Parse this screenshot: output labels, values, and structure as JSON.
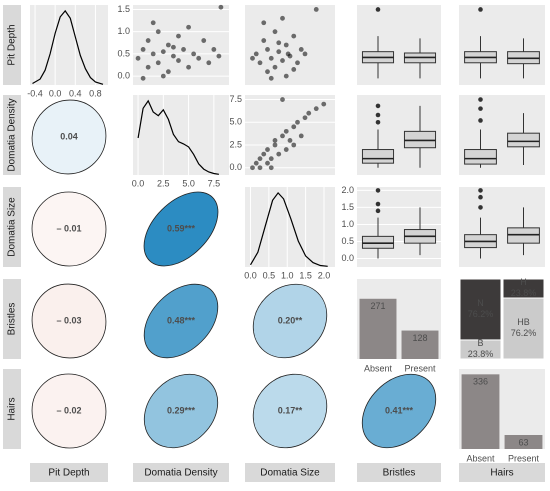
{
  "variables": [
    "Pit Depth",
    "Domatia Density",
    "Domatia Size",
    "Bristles",
    "Hairs"
  ],
  "chart_data": [
    {
      "type": "density",
      "xlim": [
        -0.5,
        1.05
      ],
      "ylim": [
        0,
        1.08
      ],
      "xticks": [
        {
          "value": -0.4,
          "label": "-0.4"
        },
        {
          "value": 0,
          "label": "0.0"
        },
        {
          "value": 0.4,
          "label": "0.4"
        },
        {
          "value": 0.8,
          "label": "0.8"
        }
      ],
      "x": [
        -0.45,
        -0.3,
        -0.2,
        -0.1,
        0,
        0.1,
        0.2,
        0.3,
        0.4,
        0.5,
        0.6,
        0.7,
        0.8,
        0.95
      ],
      "y": [
        0.02,
        0.08,
        0.2,
        0.42,
        0.7,
        0.92,
        1.0,
        0.9,
        0.65,
        0.4,
        0.22,
        0.1,
        0.04,
        0.01
      ]
    },
    {
      "type": "scatter",
      "xlim": [
        -0.5,
        9
      ],
      "ylim": [
        -0.2,
        1.6
      ],
      "yticks": [
        {
          "value": 0,
          "label": "0.0"
        },
        0.5,
        {
          "value": 1,
          "label": "1.0"
        },
        1.5
      ],
      "x": [
        0,
        0.5,
        1,
        1,
        1.5,
        2,
        2,
        2.5,
        3,
        3,
        3.5,
        4,
        4,
        4.5,
        5,
        5,
        5.5,
        6,
        6.5,
        7,
        7.5,
        8,
        1.5,
        2.5,
        3.5,
        0.5,
        8.2
      ],
      "y": [
        0.4,
        0.6,
        0.2,
        0.8,
        0.5,
        0.3,
        1.0,
        0.55,
        0.1,
        0.7,
        0.45,
        0.9,
        0.35,
        0.6,
        0.2,
        1.1,
        0.5,
        0.4,
        0.8,
        0.3,
        0.6,
        0.45,
        1.2,
        0.0,
        0.65,
        -0.05,
        1.55
      ]
    },
    {
      "type": "scatter",
      "xlim": [
        -0.1,
        2.3
      ],
      "ylim": [
        -0.2,
        1.6
      ],
      "x": [
        0.2,
        0.3,
        0.4,
        0.5,
        0.5,
        0.6,
        0.7,
        0.7,
        0.8,
        0.9,
        1.0,
        1.0,
        1.1,
        1.2,
        1.3,
        1.4,
        1.5,
        0.4,
        0.6,
        0.9,
        1.2,
        1.8,
        0.1,
        0.8,
        1.05
      ],
      "y": [
        0.5,
        0.3,
        0.8,
        0.1,
        0.6,
        0.4,
        1.0,
        0.2,
        0.55,
        0.35,
        0.7,
        0.0,
        0.45,
        0.9,
        0.3,
        0.6,
        0.5,
        1.2,
        -0.05,
        1.3,
        0.15,
        1.5,
        0.4,
        0.75,
        0.5
      ]
    },
    {
      "type": "box",
      "ylim": [
        -0.2,
        1.6
      ],
      "boxes": [
        {
          "min": -0.05,
          "q1": 0.3,
          "median": 0.42,
          "q3": 0.55,
          "max": 0.9,
          "outliers": [
            1.5
          ]
        },
        {
          "min": -0.05,
          "q1": 0.3,
          "median": 0.42,
          "q3": 0.52,
          "max": 0.85,
          "outliers": []
        }
      ]
    },
    {
      "type": "box",
      "ylim": [
        -0.2,
        1.6
      ],
      "boxes": [
        {
          "min": -0.05,
          "q1": 0.3,
          "median": 0.42,
          "q3": 0.55,
          "max": 0.9,
          "outliers": [
            1.5
          ]
        },
        {
          "min": -0.05,
          "q1": 0.28,
          "median": 0.4,
          "q3": 0.55,
          "max": 0.85,
          "outliers": []
        }
      ]
    },
    {
      "type": "correlation",
      "value": 0.04,
      "label": "0.04"
    },
    {
      "type": "density",
      "xlim": [
        -0.5,
        9
      ],
      "ylim": [
        0,
        1.08
      ],
      "xticks": [
        {
          "value": 0,
          "label": "0.0"
        },
        2.5,
        {
          "value": 5,
          "label": "5.0"
        },
        7.5
      ],
      "x": [
        0,
        0.5,
        1,
        1.5,
        2,
        2.5,
        3,
        3.5,
        4,
        4.5,
        5,
        5.5,
        6,
        6.5,
        7,
        7.5,
        8
      ],
      "y": [
        0.5,
        0.9,
        1.0,
        0.85,
        0.8,
        0.88,
        0.75,
        0.55,
        0.45,
        0.42,
        0.38,
        0.28,
        0.15,
        0.08,
        0.04,
        0.02,
        0.01
      ]
    },
    {
      "type": "scatter",
      "xlim": [
        -0.1,
        2.3
      ],
      "ylim": [
        -0.8,
        8
      ],
      "yticks": [
        {
          "value": 0,
          "label": "0.0"
        },
        2.5,
        {
          "value": 5,
          "label": "5.0"
        },
        7.5
      ],
      "x": [
        0.1,
        0.2,
        0.3,
        0.3,
        0.4,
        0.5,
        0.5,
        0.6,
        0.7,
        0.7,
        0.8,
        0.9,
        1.0,
        1.0,
        1.1,
        1.2,
        1.3,
        1.4,
        1.5,
        1.6,
        1.8,
        2.0,
        0.6,
        1.2,
        0.9
      ],
      "y": [
        0,
        0.5,
        0,
        1,
        1.5,
        0.5,
        2,
        1,
        2.5,
        3,
        1.5,
        3.5,
        2,
        4,
        3,
        4.5,
        5,
        3.5,
        5.5,
        6,
        6.5,
        7,
        0,
        2.5,
        7.5
      ]
    },
    {
      "type": "box",
      "ylim": [
        -0.8,
        8
      ],
      "boxes": [
        {
          "min": 0,
          "q1": 0.5,
          "median": 1.0,
          "q3": 2.0,
          "max": 4.2,
          "outliers": [
            5,
            5.8,
            6.8
          ]
        },
        {
          "min": 0,
          "q1": 2.2,
          "median": 3.0,
          "q3": 4.0,
          "max": 6.8,
          "outliers": []
        }
      ]
    },
    {
      "type": "box",
      "ylim": [
        -0.8,
        8
      ],
      "boxes": [
        {
          "min": 0,
          "q1": 0.4,
          "median": 1.0,
          "q3": 2.0,
          "max": 4.2,
          "outliers": [
            5.2,
            6.5,
            7.5
          ]
        },
        {
          "min": 0.3,
          "q1": 2.3,
          "median": 2.9,
          "q3": 3.8,
          "max": 6.0,
          "outliers": []
        }
      ]
    },
    {
      "type": "correlation",
      "value": -0.01,
      "label": "– 0.01"
    },
    {
      "type": "correlation",
      "value": 0.59,
      "label": "0.59***"
    },
    {
      "type": "density",
      "xlim": [
        -0.15,
        2.3
      ],
      "ylim": [
        0,
        1.08
      ],
      "xticks": [
        {
          "value": 0,
          "label": "0.0"
        },
        0.5,
        {
          "value": 1,
          "label": "1.0"
        },
        1.5,
        {
          "value": 2,
          "label": "2.0"
        }
      ],
      "x": [
        0,
        0.2,
        0.4,
        0.6,
        0.75,
        0.9,
        1.1,
        1.3,
        1.5,
        1.7,
        1.9,
        2.1
      ],
      "y": [
        0.03,
        0.2,
        0.55,
        0.9,
        1.0,
        0.92,
        0.65,
        0.35,
        0.15,
        0.06,
        0.02,
        0.01
      ]
    },
    {
      "type": "box",
      "ylim": [
        -0.25,
        2.1
      ],
      "yticks": [
        {
          "value": 0,
          "label": "0.0"
        },
        0.5,
        {
          "value": 1,
          "label": "1.0"
        },
        1.5,
        {
          "value": 2,
          "label": "2.0"
        }
      ],
      "boxes": [
        {
          "min": 0,
          "q1": 0.3,
          "median": 0.45,
          "q3": 0.65,
          "max": 1.2,
          "outliers": [
            1.4,
            1.6,
            2.0
          ]
        },
        {
          "min": 0.1,
          "q1": 0.45,
          "median": 0.65,
          "q3": 0.85,
          "max": 1.5,
          "outliers": []
        }
      ]
    },
    {
      "type": "box",
      "ylim": [
        -0.25,
        2.1
      ],
      "boxes": [
        {
          "min": 0,
          "q1": 0.32,
          "median": 0.5,
          "q3": 0.7,
          "max": 1.2,
          "outliers": [
            1.5,
            1.8,
            2.0
          ]
        },
        {
          "min": 0.1,
          "q1": 0.45,
          "median": 0.7,
          "q3": 0.9,
          "max": 1.5,
          "outliers": []
        }
      ]
    },
    {
      "type": "correlation",
      "value": -0.03,
      "label": "– 0.03"
    },
    {
      "type": "correlation",
      "value": 0.48,
      "label": "0.48***"
    },
    {
      "type": "correlation",
      "value": 0.2,
      "label": "0.20**"
    },
    {
      "type": "bar",
      "ylim": [
        0,
        360
      ],
      "color": "#8c8787",
      "categories": [
        "Absent",
        "Present"
      ],
      "values": [
        271,
        128
      ]
    },
    {
      "type": "mosaic",
      "columns": [
        {
          "names": [
            "N",
            "B"
          ],
          "values": [
            76.2,
            23.8
          ],
          "value_labels": [
            "76.2%",
            "23.8%"
          ],
          "colors": [
            "#3d3a3a",
            "#cbcbcb"
          ]
        },
        {
          "names": [
            "H",
            "HB"
          ],
          "values": [
            23.8,
            76.2
          ],
          "value_labels": [
            "23.8%",
            "76.2%"
          ],
          "colors": [
            "#3d3a3a",
            "#cbcbcb"
          ]
        }
      ]
    },
    {
      "type": "correlation",
      "value": -0.02,
      "label": "– 0.02"
    },
    {
      "type": "correlation",
      "value": 0.29,
      "label": "0.29***"
    },
    {
      "type": "correlation",
      "value": 0.17,
      "label": "0.17**"
    },
    {
      "type": "correlation",
      "value": 0.41,
      "label": "0.41***"
    },
    {
      "type": "bar",
      "ylim": [
        0,
        360
      ],
      "color": "#8c8787",
      "categories": [
        "Absent",
        "Present"
      ],
      "values": [
        336,
        63
      ]
    }
  ]
}
